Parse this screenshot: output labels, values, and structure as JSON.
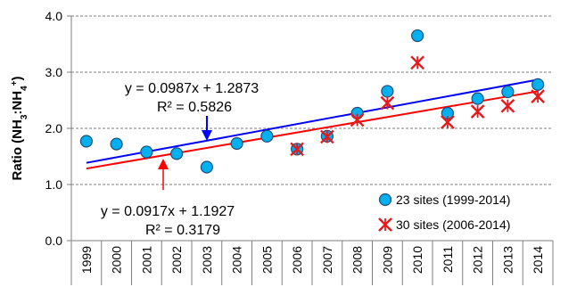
{
  "chart_data": {
    "type": "scatter",
    "ylabel": "Ratio (NH3:NH4+)",
    "ylabel_parts": {
      "prefix": "Ratio (NH",
      "sub1": "3",
      "mid": ":NH",
      "sub2": "4",
      "sup": "+",
      "suffix": ")"
    },
    "categories": [
      "1999",
      "2000",
      "2001",
      "2002",
      "2003",
      "2004",
      "2005",
      "2006",
      "2007",
      "2008",
      "2009",
      "2010",
      "2011",
      "2012",
      "2013",
      "2014"
    ],
    "ylim": [
      0.0,
      4.0
    ],
    "yticks": [
      "0.0",
      "1.0",
      "2.0",
      "3.0",
      "4.0"
    ],
    "grid": "horizontal dashed",
    "series": [
      {
        "name": "23 sites (1999-2014)",
        "marker": "circle",
        "color": "#00b0f0",
        "edge_color": "#1f4e79",
        "values": [
          1.77,
          1.72,
          1.58,
          1.55,
          1.31,
          1.73,
          1.86,
          1.63,
          1.86,
          2.27,
          2.66,
          3.65,
          2.27,
          2.53,
          2.65,
          2.78
        ],
        "trendline": {
          "color": "#0000ff",
          "equation": "y = 0.0987x + 1.2873",
          "r2": "R² = 0.5826",
          "slope": 0.0987,
          "intercept": 1.2873
        }
      },
      {
        "name": "30 sites (2006-2014)",
        "marker": "asterisk",
        "color": "#e41a1c",
        "values": [
          null,
          null,
          null,
          null,
          null,
          null,
          null,
          1.63,
          1.85,
          2.15,
          2.45,
          3.17,
          2.11,
          2.3,
          2.4,
          2.57
        ],
        "trendline": {
          "color": "#ff0000",
          "equation": "y = 0.0917x + 1.1927",
          "r2": "R² = 0.3179",
          "slope": 0.0917,
          "intercept": 1.1927
        }
      }
    ],
    "legend_position": "bottom-right"
  }
}
